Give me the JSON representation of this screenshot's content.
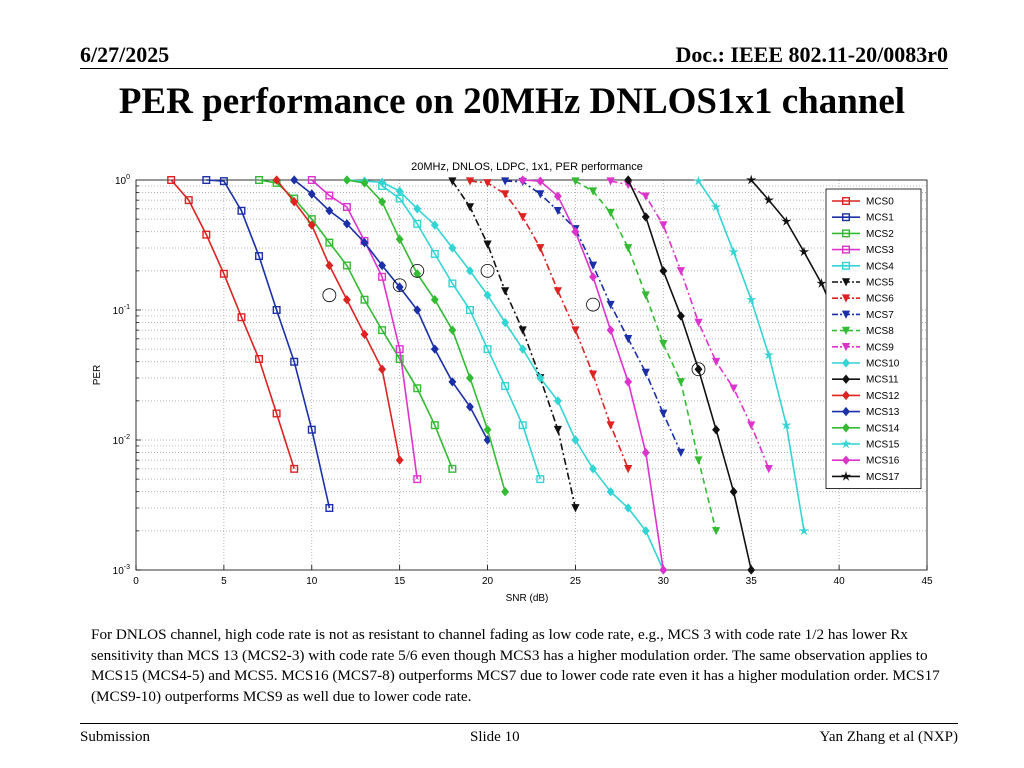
{
  "header": {
    "date": "6/27/2025",
    "doc": "Doc.: IEEE 802.11-20/0083r0"
  },
  "slide_title": "PER performance on 20MHz DNLOS1x1 channel",
  "caption": "For DNLOS channel, high code rate is not as resistant to channel fading as low code rate, e.g., MCS 3 with code rate 1/2 has lower Rx sensitivity than MCS 13 (MCS2-3) with code rate 5/6 even though MCS3 has a higher modulation order. The same observation applies to MCS15 (MCS4-5) and MCS5. MCS16 (MCS7-8) outperforms MCS7 due to lower code rate even it has a higher modulation order. MCS17 (MCS9-10) outperforms MCS9 as well due to lower code rate.",
  "footer": {
    "left": "Submission",
    "center": "Slide 10",
    "right": "Yan Zhang et al (NXP)"
  },
  "chart_data": {
    "type": "line",
    "title": "20MHz, DNLOS, LDPC, 1x1, PER performance",
    "xlabel": "SNR (dB)",
    "ylabel": "PER",
    "xlim": [
      0,
      45
    ],
    "ylim": [
      0.001,
      1
    ],
    "y_scale": "log",
    "grid": true,
    "legend_position": "top-right",
    "x_ticks": [
      "0",
      "5",
      "10",
      "15",
      "20",
      "25",
      "30",
      "35",
      "40",
      "45"
    ],
    "y_ticks": [
      {
        "base": "10",
        "exp": "0",
        "value": 1
      },
      {
        "base": "10",
        "exp": "-1",
        "value": 0.1
      },
      {
        "base": "10",
        "exp": "-2",
        "value": 0.01
      },
      {
        "base": "10",
        "exp": "-3",
        "value": 0.001
      }
    ],
    "series": [
      {
        "name": "MCS0",
        "color": "#dd2222",
        "dash": "solid",
        "marker": "square",
        "x": [
          2,
          3,
          4,
          5,
          6,
          7,
          8,
          9
        ],
        "y": [
          1,
          0.7,
          0.38,
          0.19,
          0.088,
          0.042,
          0.016,
          0.006
        ]
      },
      {
        "name": "MCS1",
        "color": "#1a2fa8",
        "dash": "solid",
        "marker": "square",
        "x": [
          4,
          5,
          6,
          7,
          8,
          9,
          10,
          11
        ],
        "y": [
          1,
          0.98,
          0.58,
          0.26,
          0.1,
          0.04,
          0.012,
          0.003
        ]
      },
      {
        "name": "MCS2",
        "color": "#33bb33",
        "dash": "solid",
        "marker": "square",
        "x": [
          7,
          8,
          9,
          10,
          11,
          12,
          13,
          14,
          15,
          16,
          17,
          18
        ],
        "y": [
          1,
          0.95,
          0.72,
          0.5,
          0.33,
          0.22,
          0.12,
          0.07,
          0.042,
          0.025,
          0.013,
          0.006
        ]
      },
      {
        "name": "MCS3",
        "color": "#dd33cc",
        "dash": "solid",
        "marker": "square",
        "x": [
          10,
          11,
          12,
          13,
          14,
          15,
          16
        ],
        "y": [
          1,
          0.76,
          0.62,
          0.34,
          0.18,
          0.05,
          0.005
        ]
      },
      {
        "name": "MCS4",
        "color": "#33d4d4",
        "dash": "solid",
        "marker": "square",
        "x": [
          14,
          15,
          16,
          17,
          18,
          19,
          20,
          21,
          22,
          23
        ],
        "y": [
          0.9,
          0.72,
          0.46,
          0.27,
          0.16,
          0.1,
          0.05,
          0.026,
          0.013,
          0.005
        ]
      },
      {
        "name": "MCS5",
        "color": "#111111",
        "dash": "dashdot",
        "marker": "triangle-down",
        "x": [
          18,
          19,
          20,
          21,
          22,
          23,
          24,
          25
        ],
        "y": [
          0.98,
          0.62,
          0.32,
          0.14,
          0.07,
          0.03,
          0.012,
          0.003
        ]
      },
      {
        "name": "MCS6",
        "color": "#dd2222",
        "dash": "dashdot",
        "marker": "triangle-down",
        "x": [
          19,
          20,
          21,
          22,
          23,
          24,
          25,
          26,
          27,
          28
        ],
        "y": [
          0.98,
          0.95,
          0.78,
          0.52,
          0.3,
          0.14,
          0.07,
          0.032,
          0.013,
          0.006
        ]
      },
      {
        "name": "MCS7",
        "color": "#1a2fa8",
        "dash": "dashdot",
        "marker": "triangle-down",
        "x": [
          21,
          22,
          23,
          24,
          25,
          26,
          27,
          28,
          29,
          30,
          31
        ],
        "y": [
          0.98,
          0.97,
          0.78,
          0.58,
          0.42,
          0.22,
          0.11,
          0.06,
          0.033,
          0.016,
          0.008
        ]
      },
      {
        "name": "MCS8",
        "color": "#33bb33",
        "dash": "dashed",
        "marker": "triangle-down",
        "x": [
          25,
          26,
          27,
          28,
          29,
          30,
          31,
          32,
          33
        ],
        "y": [
          0.98,
          0.82,
          0.56,
          0.3,
          0.13,
          0.055,
          0.028,
          0.007,
          0.002
        ]
      },
      {
        "name": "MCS9",
        "color": "#dd33cc",
        "dash": "dashdot",
        "marker": "triangle-down",
        "x": [
          27,
          28,
          29,
          30,
          31,
          32,
          33,
          34,
          35,
          36
        ],
        "y": [
          0.98,
          0.92,
          0.75,
          0.45,
          0.2,
          0.08,
          0.04,
          0.025,
          0.013,
          0.006
        ]
      },
      {
        "name": "MCS10",
        "color": "#33d4d4",
        "dash": "solid",
        "marker": "diamond",
        "x": [
          12,
          13,
          14,
          15,
          16,
          17,
          18,
          19,
          20,
          21,
          22,
          23,
          24,
          25,
          26,
          27,
          28,
          29,
          30
        ],
        "y": [
          1,
          0.98,
          0.96,
          0.82,
          0.6,
          0.45,
          0.3,
          0.2,
          0.13,
          0.08,
          0.05,
          0.03,
          0.02,
          0.01,
          0.006,
          0.004,
          0.003,
          0.002,
          0.001
        ]
      },
      {
        "name": "MCS11",
        "color": "#111111",
        "dash": "solid",
        "marker": "diamond",
        "x": [
          28,
          29,
          30,
          31,
          32,
          33,
          34,
          35
        ],
        "y": [
          1,
          0.52,
          0.2,
          0.09,
          0.035,
          0.012,
          0.004,
          0.001
        ]
      },
      {
        "name": "MCS12",
        "color": "#dd2222",
        "dash": "solid",
        "marker": "diamond",
        "x": [
          8,
          9,
          10,
          11,
          12,
          13,
          14,
          15
        ],
        "y": [
          1,
          0.68,
          0.45,
          0.22,
          0.12,
          0.065,
          0.035,
          0.007
        ]
      },
      {
        "name": "MCS13",
        "color": "#1a2fa8",
        "dash": "solid",
        "marker": "diamond",
        "x": [
          9,
          10,
          11,
          12,
          13,
          14,
          15,
          16,
          17,
          18,
          19,
          20
        ],
        "y": [
          1,
          0.78,
          0.58,
          0.46,
          0.33,
          0.22,
          0.15,
          0.1,
          0.05,
          0.028,
          0.018,
          0.01
        ]
      },
      {
        "name": "MCS14",
        "color": "#33bb33",
        "dash": "solid",
        "marker": "diamond",
        "x": [
          12,
          13,
          14,
          15,
          16,
          17,
          18,
          19,
          20,
          21
        ],
        "y": [
          1,
          0.95,
          0.68,
          0.35,
          0.19,
          0.12,
          0.07,
          0.03,
          0.012,
          0.004
        ]
      },
      {
        "name": "MCS15",
        "color": "#33d4d4",
        "dash": "solid",
        "marker": "star",
        "x": [
          32,
          33,
          34,
          35,
          36,
          37,
          38
        ],
        "y": [
          0.98,
          0.62,
          0.28,
          0.12,
          0.045,
          0.013,
          0.002
        ]
      },
      {
        "name": "MCS16",
        "color": "#dd33cc",
        "dash": "solid",
        "marker": "diamond",
        "x": [
          22,
          23,
          24,
          25,
          26,
          27,
          28,
          29,
          30
        ],
        "y": [
          1,
          0.98,
          0.75,
          0.4,
          0.18,
          0.07,
          0.028,
          0.008,
          0.001
        ]
      },
      {
        "name": "MCS17",
        "color": "#111111",
        "dash": "solid",
        "marker": "star",
        "x": [
          35,
          36,
          37,
          38,
          39,
          40,
          41,
          42,
          43
        ],
        "y": [
          1,
          0.7,
          0.48,
          0.28,
          0.16,
          0.08,
          0.036,
          0.02,
          0.012
        ]
      }
    ],
    "annotations": [
      {
        "type": "circle",
        "x": 11,
        "y": 0.13
      },
      {
        "type": "circle",
        "x": 15,
        "y": 0.155
      },
      {
        "type": "circle",
        "x": 16,
        "y": 0.2
      },
      {
        "type": "circle",
        "x": 20,
        "y": 0.2
      },
      {
        "type": "circle",
        "x": 26,
        "y": 0.11
      },
      {
        "type": "circle",
        "x": 32,
        "y": 0.035
      }
    ]
  }
}
